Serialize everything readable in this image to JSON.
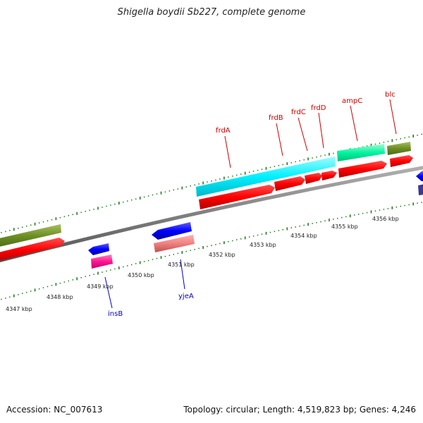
{
  "title": "Shigella boydii Sb227, complete genome",
  "footer": {
    "accession": "Accession: NC_007613",
    "summary": "Topology: circular; Length: 4,519,823 bp; Genes: 4,246"
  },
  "colors": {
    "backbone": "#808080",
    "tick": "#1f7a1f",
    "forward_label": "#cc0000",
    "reverse_label": "#0000cc",
    "cds": "#ff0000",
    "rna": "#00ffff"
  },
  "tick_labels": [
    "4347 kbp",
    "4348 kbp",
    "4349 kbp",
    "4350 kbp",
    "4351 kbp",
    "4352 kbp",
    "4353 kbp",
    "4354 kbp",
    "4355 kbp",
    "4356 kbp"
  ],
  "forward_genes": [
    "frdA",
    "frdB",
    "frdC",
    "frdD",
    "ampC",
    "blc"
  ],
  "reverse_genes": [
    "insB",
    "yjeA"
  ]
}
